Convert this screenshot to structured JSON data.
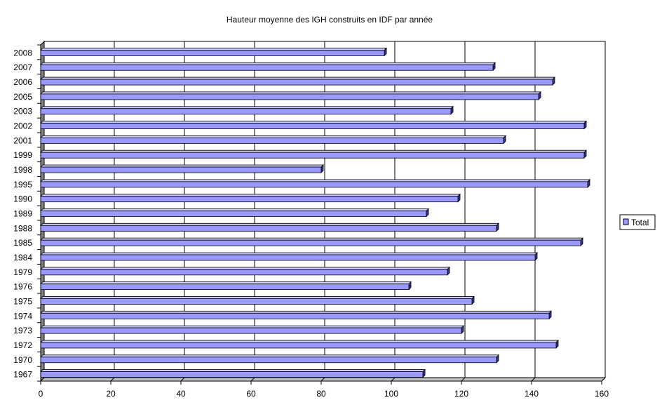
{
  "chart_data": {
    "type": "bar",
    "orientation": "horizontal",
    "title": "Hauteur moyenne des IGH construits en IDF par année",
    "xlabel": "",
    "ylabel": "",
    "categories": [
      "2008",
      "2007",
      "2006",
      "2005",
      "2003",
      "2002",
      "2001",
      "1999",
      "1998",
      "1995",
      "1990",
      "1989",
      "1988",
      "1985",
      "1984",
      "1979",
      "1976",
      "1975",
      "1974",
      "1973",
      "1972",
      "1970",
      "1967"
    ],
    "series": [
      {
        "name": "Total",
        "values": [
          98,
          129,
          146,
          142,
          117,
          155,
          132,
          155,
          80,
          156,
          119,
          110,
          130,
          154,
          141,
          116,
          105,
          123,
          145,
          120,
          147,
          130,
          109
        ]
      }
    ],
    "xlim": [
      0,
      160
    ],
    "xticks": [
      0,
      20,
      40,
      60,
      80,
      100,
      120,
      140,
      160
    ],
    "grid": "vertical",
    "legend": "right",
    "colors": {
      "bar_front": "#9999ff",
      "bar_top": "#ccccff",
      "bar_side": "#333399",
      "wall": "#ffffff",
      "wall_side": "#808080",
      "floor": "#c0c0c0",
      "grid": "#000000"
    }
  }
}
